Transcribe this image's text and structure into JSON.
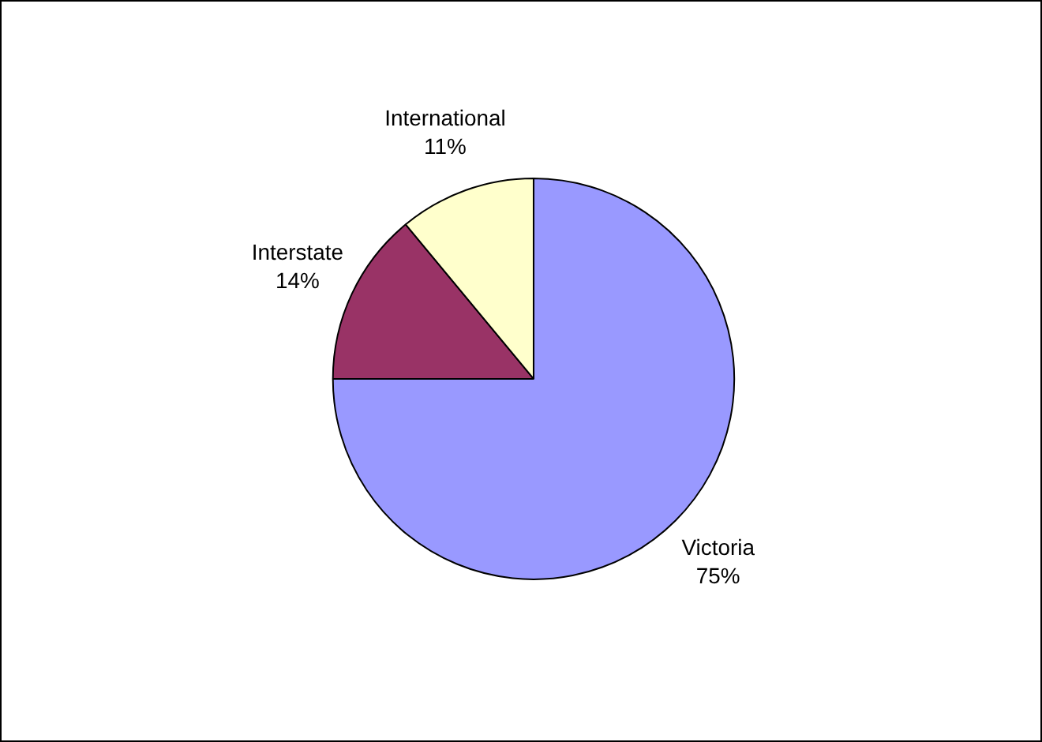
{
  "chart_data": {
    "type": "pie",
    "categories": [
      "Victoria",
      "Interstate",
      "International"
    ],
    "values": [
      75,
      14,
      11
    ],
    "value_labels": [
      "75%",
      "14%",
      "11%"
    ],
    "colors": [
      "#9999ff",
      "#993366",
      "#ffffcc"
    ]
  }
}
